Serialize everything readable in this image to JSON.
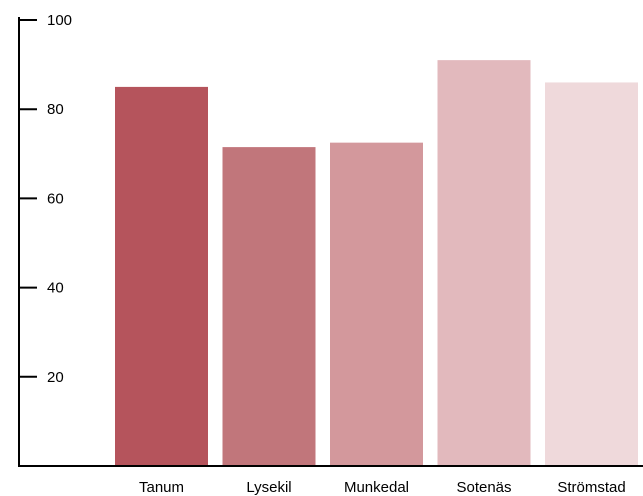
{
  "chart_data": {
    "type": "bar",
    "categories": [
      "Tanum",
      "Lysekil",
      "Munkedal",
      "Sotenäs",
      "Strömstad"
    ],
    "values": [
      85,
      71.5,
      72.5,
      91,
      86
    ],
    "colors": [
      "#b5545c",
      "#c1767b",
      "#d3989c",
      "#e2b9bd",
      "#efd9db"
    ],
    "ylim": [
      0,
      100
    ],
    "yticks": [
      20,
      40,
      60,
      80,
      100
    ],
    "ytick_labels": [
      "20",
      "40",
      "60",
      "80",
      "100"
    ],
    "grid": false,
    "legend": "none"
  }
}
